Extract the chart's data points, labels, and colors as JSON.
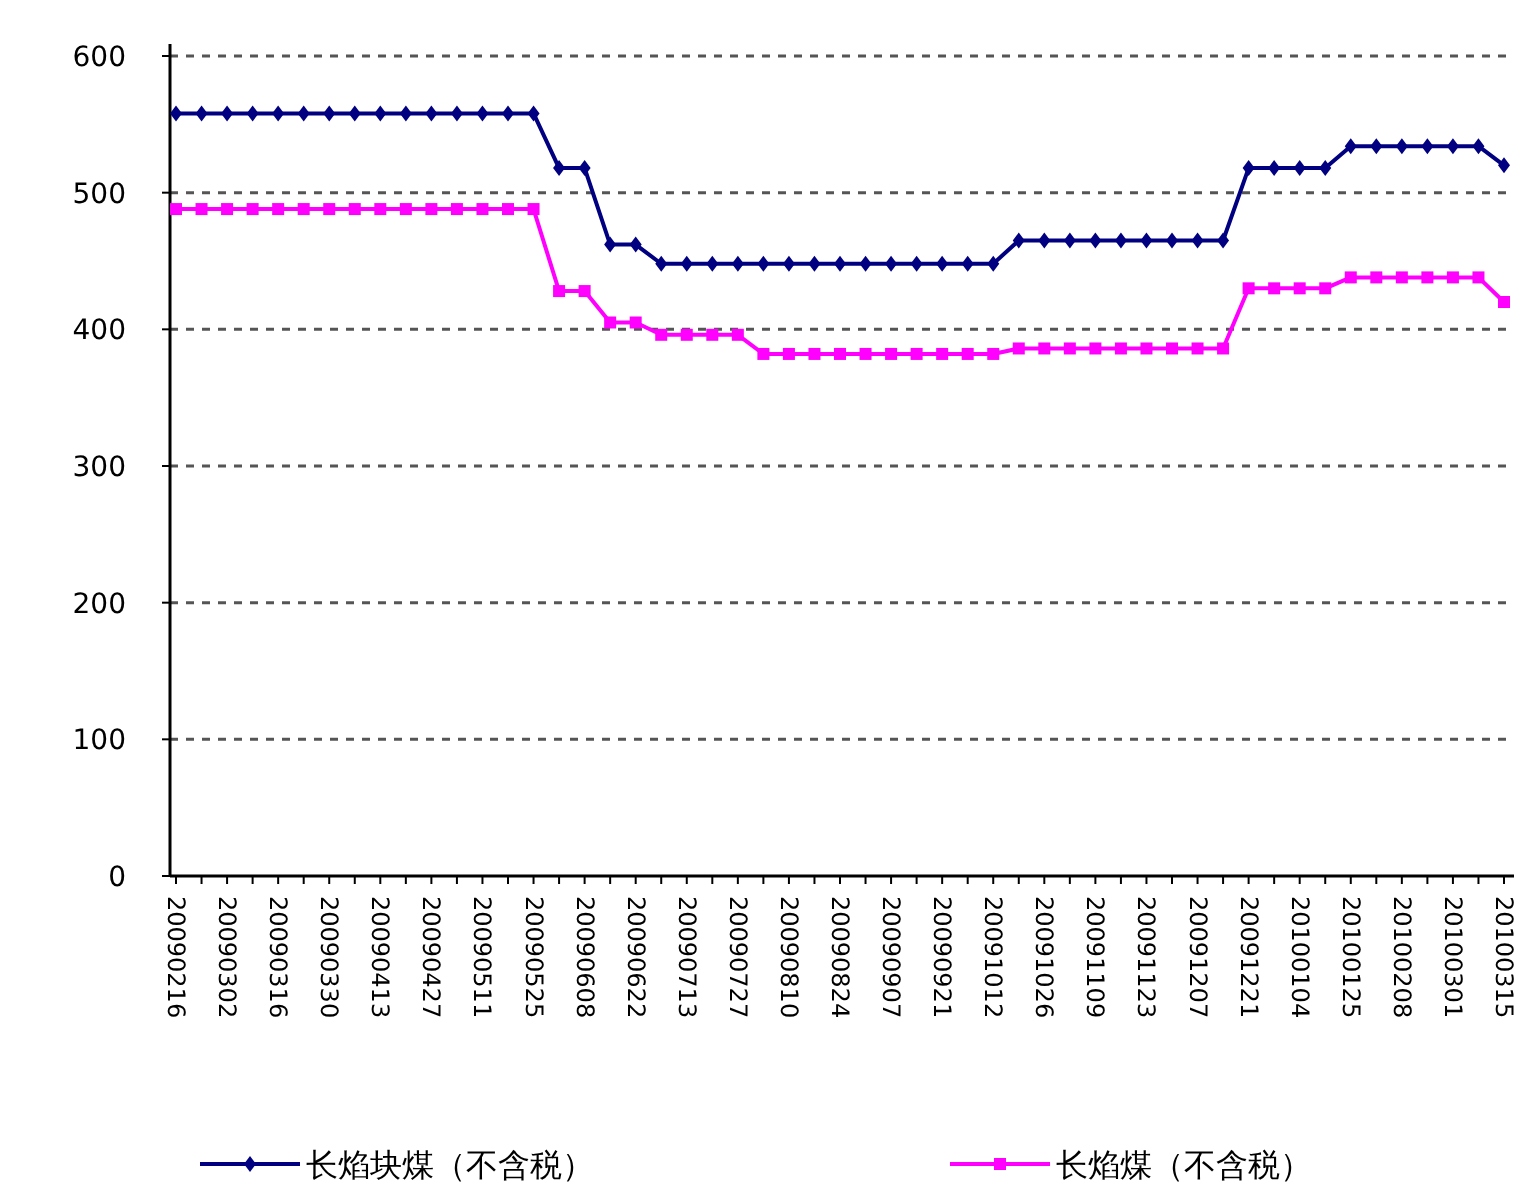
{
  "chart_data": {
    "type": "line",
    "categories": [
      "20090216",
      null,
      "20090302",
      null,
      "20090316",
      null,
      "20090330",
      null,
      "20090413",
      null,
      "20090427",
      null,
      "20090511",
      null,
      "20090525",
      null,
      "20090608",
      null,
      "20090622",
      null,
      "20090713",
      null,
      "20090727",
      null,
      "20090810",
      null,
      "20090824",
      null,
      "20090907",
      null,
      "20090921",
      null,
      "20091012",
      null,
      "20091026",
      null,
      "20091109",
      null,
      "20091123",
      null,
      "20091207",
      null,
      "20091221",
      null,
      "20100104",
      null,
      "20100125",
      null,
      "20100208",
      null,
      "20100301",
      null,
      "20100315"
    ],
    "series": [
      {
        "name": "长焰块煤（不含税）",
        "color": "#000080",
        "marker": "diamond",
        "values": [
          558,
          558,
          558,
          558,
          558,
          558,
          558,
          558,
          558,
          558,
          558,
          558,
          558,
          558,
          558,
          518,
          518,
          462,
          462,
          448,
          448,
          448,
          448,
          448,
          448,
          448,
          448,
          448,
          448,
          448,
          448,
          448,
          448,
          465,
          465,
          465,
          465,
          465,
          465,
          465,
          465,
          465,
          518,
          518,
          518,
          518,
          534,
          534,
          534,
          534,
          534,
          534,
          520
        ]
      },
      {
        "name": "长焰煤（不含税）",
        "color": "#ff00ff",
        "marker": "square",
        "values": [
          488,
          488,
          488,
          488,
          488,
          488,
          488,
          488,
          488,
          488,
          488,
          488,
          488,
          488,
          488,
          428,
          428,
          405,
          405,
          396,
          396,
          396,
          396,
          382,
          382,
          382,
          382,
          382,
          382,
          382,
          382,
          382,
          382,
          386,
          386,
          386,
          386,
          386,
          386,
          386,
          386,
          386,
          430,
          430,
          430,
          430,
          438,
          438,
          438,
          438,
          438,
          438,
          420
        ]
      }
    ],
    "ylim": [
      0,
      600
    ],
    "yticks": [
      0,
      100,
      200,
      300,
      400,
      500,
      600
    ],
    "grid": "y",
    "legend": "bottom",
    "line_style": "solid"
  }
}
